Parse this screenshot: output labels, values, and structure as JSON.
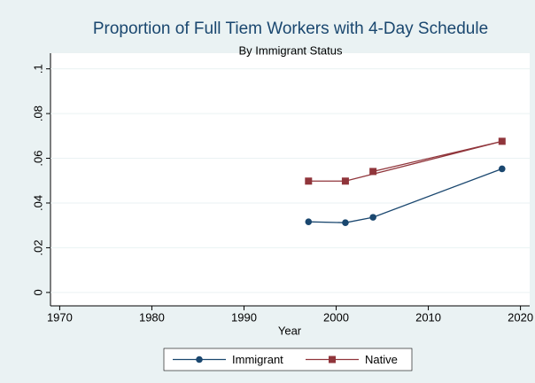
{
  "chart_data": {
    "type": "line",
    "title": "Proportion of Full Tiem Workers with 4-Day Schedule",
    "subtitle": "By Immigrant Status",
    "x_label": "Year",
    "xlim": [
      1969,
      2021
    ],
    "xticks": [
      1970,
      1980,
      1990,
      2000,
      2010,
      2020
    ],
    "ylim": [
      -0.006,
      0.107
    ],
    "yticks": [
      0,
      {
        "value": 0.02,
        "label": ".02"
      },
      {
        "value": 0.04,
        "label": ".04"
      },
      {
        "value": 0.06,
        "label": ".06"
      },
      {
        "value": 0.08,
        "label": ".08"
      },
      {
        "value": 0.1,
        "label": ".1"
      }
    ],
    "grid": true,
    "legend": "bottom",
    "series": [
      {
        "name": "Immigrant",
        "color": "#1a476f",
        "marker": "circle",
        "x": [
          1997,
          2001,
          2004,
          2018
        ],
        "values": [
          0.0316,
          0.0312,
          0.0336,
          0.0553
        ]
      },
      {
        "name": "Native",
        "color": "#90353b",
        "marker": "square",
        "x": [
          1997,
          2001,
          2018,
          2004
        ],
        "values": [
          0.0498,
          0.0498,
          0.0676,
          0.0541
        ]
      }
    ]
  }
}
